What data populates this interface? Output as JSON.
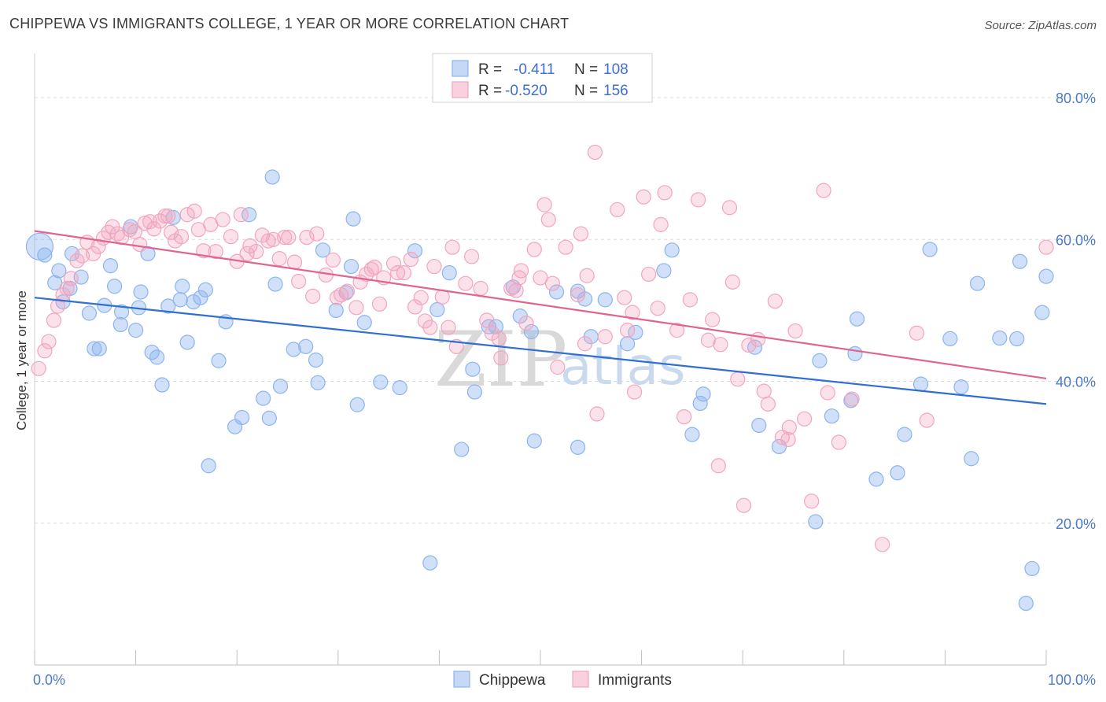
{
  "header": {
    "title": "CHIPPEWA VS IMMIGRANTS COLLEGE, 1 YEAR OR MORE CORRELATION CHART",
    "source": "Source: ZipAtlas.com"
  },
  "watermark": {
    "zip": "ZIP",
    "atlas": "atlas"
  },
  "legend": {
    "r_label": "R =",
    "n_label": "N =",
    "rows": [
      {
        "name": "Chippewa",
        "r": "-0.411",
        "n": "108",
        "color": "#8db4ee"
      },
      {
        "name": "Immigrants",
        "r": "-0.520",
        "n": "156",
        "color": "#f2a5be"
      }
    ]
  },
  "chart_data": {
    "type": "scatter",
    "title": "CHIPPEWA VS IMMIGRANTS COLLEGE, 1 YEAR OR MORE CORRELATION CHART",
    "xlabel": "",
    "ylabel": "College, 1 year or more",
    "xlim": [
      0,
      100
    ],
    "ylim": [
      0,
      85
    ],
    "x_tick_labels": [
      "0.0%",
      "100.0%"
    ],
    "y_ticks": [
      20,
      40,
      60,
      80
    ],
    "y_tick_labels": [
      "20.0%",
      "40.0%",
      "60.0%",
      "80.0%"
    ],
    "grid": true,
    "legend_position": "top-center",
    "series": [
      {
        "name": "Chippewa",
        "color": "#8db4ee",
        "line_color": "#2f6fd0",
        "trend": {
          "x": [
            0,
            100
          ],
          "y": [
            51.8,
            36.8
          ]
        },
        "points": [
          [
            0.5,
            59.0
          ],
          [
            1.0,
            57.8
          ],
          [
            2.0,
            53.9
          ],
          [
            2.4,
            55.6
          ],
          [
            2.8,
            51.2
          ],
          [
            3.5,
            53.1
          ],
          [
            3.7,
            58.0
          ],
          [
            4.6,
            54.7
          ],
          [
            5.4,
            49.6
          ],
          [
            5.9,
            44.6
          ],
          [
            6.4,
            44.6
          ],
          [
            6.9,
            50.7
          ],
          [
            7.5,
            56.3
          ],
          [
            7.9,
            53.4
          ],
          [
            8.5,
            48.0
          ],
          [
            8.6,
            49.8
          ],
          [
            9.5,
            61.8
          ],
          [
            10.0,
            47.2
          ],
          [
            10.3,
            50.4
          ],
          [
            10.5,
            52.6
          ],
          [
            11.2,
            58.0
          ],
          [
            11.6,
            44.1
          ],
          [
            12.1,
            43.4
          ],
          [
            12.6,
            39.5
          ],
          [
            13.2,
            50.6
          ],
          [
            13.7,
            63.1
          ],
          [
            14.4,
            51.5
          ],
          [
            14.6,
            53.4
          ],
          [
            15.1,
            45.5
          ],
          [
            15.7,
            51.2
          ],
          [
            16.4,
            51.8
          ],
          [
            16.9,
            52.9
          ],
          [
            17.2,
            28.1
          ],
          [
            18.2,
            42.9
          ],
          [
            18.9,
            48.4
          ],
          [
            19.8,
            33.6
          ],
          [
            20.5,
            34.9
          ],
          [
            21.2,
            63.5
          ],
          [
            22.6,
            37.6
          ],
          [
            23.2,
            34.8
          ],
          [
            23.5,
            68.8
          ],
          [
            23.8,
            53.7
          ],
          [
            24.3,
            39.3
          ],
          [
            25.6,
            44.5
          ],
          [
            26.8,
            44.9
          ],
          [
            27.8,
            43.0
          ],
          [
            28.0,
            39.8
          ],
          [
            28.5,
            58.5
          ],
          [
            29.8,
            50.0
          ],
          [
            30.8,
            52.5
          ],
          [
            31.5,
            62.9
          ],
          [
            31.9,
            36.7
          ],
          [
            32.6,
            48.3
          ],
          [
            31.3,
            56.2
          ],
          [
            34.2,
            39.9
          ],
          [
            36.1,
            39.1
          ],
          [
            37.6,
            58.4
          ],
          [
            39.1,
            14.4
          ],
          [
            39.8,
            50.1
          ],
          [
            41.0,
            55.3
          ],
          [
            42.2,
            30.4
          ],
          [
            43.3,
            41.7
          ],
          [
            43.5,
            38.5
          ],
          [
            44.9,
            47.7
          ],
          [
            45.6,
            47.7
          ],
          [
            47.3,
            53.3
          ],
          [
            48.0,
            49.2
          ],
          [
            49.1,
            47.0
          ],
          [
            49.4,
            31.6
          ],
          [
            51.6,
            52.6
          ],
          [
            53.7,
            30.7
          ],
          [
            53.7,
            52.7
          ],
          [
            54.4,
            51.6
          ],
          [
            55.0,
            46.3
          ],
          [
            56.4,
            51.5
          ],
          [
            58.6,
            45.3
          ],
          [
            59.4,
            46.9
          ],
          [
            62.2,
            55.6
          ],
          [
            63.0,
            58.5
          ],
          [
            65.0,
            32.5
          ],
          [
            65.8,
            36.9
          ],
          [
            66.1,
            38.2
          ],
          [
            71.2,
            44.8
          ],
          [
            71.6,
            33.8
          ],
          [
            73.6,
            30.8
          ],
          [
            77.2,
            20.2
          ],
          [
            77.6,
            42.9
          ],
          [
            78.8,
            35.1
          ],
          [
            80.7,
            37.3
          ],
          [
            81.1,
            43.9
          ],
          [
            81.3,
            48.8
          ],
          [
            83.2,
            26.2
          ],
          [
            85.3,
            27.1
          ],
          [
            86.0,
            32.5
          ],
          [
            87.6,
            39.6
          ],
          [
            88.5,
            58.6
          ],
          [
            90.5,
            46.0
          ],
          [
            91.6,
            39.2
          ],
          [
            93.2,
            53.8
          ],
          [
            92.6,
            29.1
          ],
          [
            95.4,
            46.1
          ],
          [
            97.1,
            46.0
          ],
          [
            97.4,
            56.9
          ],
          [
            98.0,
            8.7
          ],
          [
            98.6,
            13.6
          ],
          [
            99.6,
            49.7
          ],
          [
            100.0,
            54.8
          ]
        ]
      },
      {
        "name": "Immigrants",
        "color": "#f2a5be",
        "line_color": "#e0648f",
        "trend": {
          "x": [
            0,
            100
          ],
          "y": [
            61.2,
            40.4
          ]
        },
        "points": [
          [
            0.4,
            41.8
          ],
          [
            1.0,
            44.3
          ],
          [
            1.4,
            45.6
          ],
          [
            1.9,
            48.6
          ],
          [
            2.3,
            50.6
          ],
          [
            2.8,
            52.2
          ],
          [
            3.2,
            53.1
          ],
          [
            3.6,
            54.5
          ],
          [
            4.2,
            57.0
          ],
          [
            4.7,
            57.7
          ],
          [
            5.2,
            59.6
          ],
          [
            5.8,
            58.0
          ],
          [
            6.3,
            59.0
          ],
          [
            6.8,
            60.2
          ],
          [
            7.3,
            61.0
          ],
          [
            7.7,
            61.8
          ],
          [
            8.2,
            60.8
          ],
          [
            8.6,
            60.3
          ],
          [
            9.4,
            61.4
          ],
          [
            9.9,
            61.1
          ],
          [
            10.4,
            59.3
          ],
          [
            10.9,
            62.3
          ],
          [
            11.4,
            62.5
          ],
          [
            11.8,
            61.5
          ],
          [
            12.4,
            62.6
          ],
          [
            12.9,
            63.3
          ],
          [
            13.2,
            63.3
          ],
          [
            13.5,
            61.0
          ],
          [
            13.9,
            59.8
          ],
          [
            14.5,
            60.4
          ],
          [
            15.1,
            63.5
          ],
          [
            15.8,
            64.0
          ],
          [
            16.2,
            61.4
          ],
          [
            16.7,
            58.4
          ],
          [
            17.4,
            62.1
          ],
          [
            17.9,
            58.3
          ],
          [
            18.6,
            62.8
          ],
          [
            19.4,
            60.4
          ],
          [
            20.0,
            56.9
          ],
          [
            20.4,
            63.5
          ],
          [
            21.0,
            58.0
          ],
          [
            21.3,
            59.1
          ],
          [
            21.9,
            58.3
          ],
          [
            22.5,
            60.6
          ],
          [
            23.1,
            59.8
          ],
          [
            23.6,
            60.0
          ],
          [
            24.2,
            57.3
          ],
          [
            24.7,
            60.3
          ],
          [
            25.1,
            60.3
          ],
          [
            25.7,
            56.8
          ],
          [
            26.1,
            54.1
          ],
          [
            26.9,
            60.3
          ],
          [
            27.5,
            52.0
          ],
          [
            27.9,
            60.8
          ],
          [
            28.8,
            55.0
          ],
          [
            29.5,
            57.1
          ],
          [
            29.9,
            51.8
          ],
          [
            30.3,
            52.2
          ],
          [
            30.9,
            52.7
          ],
          [
            31.8,
            50.4
          ],
          [
            32.2,
            54.0
          ],
          [
            32.8,
            55.1
          ],
          [
            33.3,
            55.8
          ],
          [
            33.6,
            56.1
          ],
          [
            34.1,
            50.9
          ],
          [
            34.5,
            54.6
          ],
          [
            35.5,
            56.6
          ],
          [
            35.9,
            55.3
          ],
          [
            36.5,
            55.3
          ],
          [
            37.2,
            57.2
          ],
          [
            37.6,
            50.5
          ],
          [
            38.2,
            51.8
          ],
          [
            38.6,
            48.5
          ],
          [
            39.1,
            47.6
          ],
          [
            39.5,
            56.2
          ],
          [
            40.3,
            51.9
          ],
          [
            40.9,
            47.6
          ],
          [
            41.3,
            58.9
          ],
          [
            41.7,
            44.9
          ],
          [
            42.6,
            53.8
          ],
          [
            43.2,
            57.6
          ],
          [
            44.1,
            53.1
          ],
          [
            44.7,
            48.6
          ],
          [
            45.2,
            46.8
          ],
          [
            45.9,
            46.0
          ],
          [
            46.1,
            43.3
          ],
          [
            47.1,
            53.1
          ],
          [
            47.6,
            52.8
          ],
          [
            47.9,
            54.6
          ],
          [
            48.1,
            55.6
          ],
          [
            48.6,
            48.2
          ],
          [
            49.4,
            58.6
          ],
          [
            50.0,
            54.6
          ],
          [
            50.4,
            64.9
          ],
          [
            50.8,
            62.8
          ],
          [
            51.2,
            53.8
          ],
          [
            51.7,
            42.0
          ],
          [
            52.5,
            58.9
          ],
          [
            53.7,
            52.2
          ],
          [
            54.0,
            60.8
          ],
          [
            54.4,
            45.3
          ],
          [
            54.6,
            54.9
          ],
          [
            55.4,
            72.3
          ],
          [
            55.6,
            35.4
          ],
          [
            56.4,
            46.3
          ],
          [
            57.6,
            64.2
          ],
          [
            58.3,
            51.8
          ],
          [
            58.6,
            47.2
          ],
          [
            59.1,
            49.7
          ],
          [
            59.3,
            38.5
          ],
          [
            60.2,
            66.0
          ],
          [
            60.7,
            55.1
          ],
          [
            61.6,
            50.3
          ],
          [
            61.9,
            62.1
          ],
          [
            62.3,
            66.6
          ],
          [
            63.5,
            47.2
          ],
          [
            64.2,
            35.0
          ],
          [
            64.8,
            51.5
          ],
          [
            65.6,
            65.6
          ],
          [
            66.6,
            45.8
          ],
          [
            67.0,
            48.7
          ],
          [
            67.6,
            28.1
          ],
          [
            67.8,
            45.2
          ],
          [
            68.7,
            64.5
          ],
          [
            69.0,
            54.0
          ],
          [
            69.5,
            40.3
          ],
          [
            70.1,
            22.5
          ],
          [
            70.6,
            45.1
          ],
          [
            71.5,
            45.9
          ],
          [
            72.1,
            38.6
          ],
          [
            72.5,
            36.8
          ],
          [
            73.2,
            51.3
          ],
          [
            73.9,
            32.1
          ],
          [
            74.5,
            31.8
          ],
          [
            74.6,
            33.5
          ],
          [
            75.2,
            47.1
          ],
          [
            76.1,
            34.7
          ],
          [
            76.8,
            23.1
          ],
          [
            78.0,
            66.9
          ],
          [
            78.4,
            38.4
          ],
          [
            79.5,
            31.4
          ],
          [
            80.8,
            37.5
          ],
          [
            83.8,
            17.0
          ],
          [
            87.2,
            46.8
          ],
          [
            88.2,
            34.5
          ],
          [
            100.0,
            58.9
          ]
        ]
      }
    ]
  },
  "bottom_legend": [
    {
      "label": "Chippewa",
      "color": "#8db4ee"
    },
    {
      "label": "Immigrants",
      "color": "#f2a5be"
    }
  ]
}
